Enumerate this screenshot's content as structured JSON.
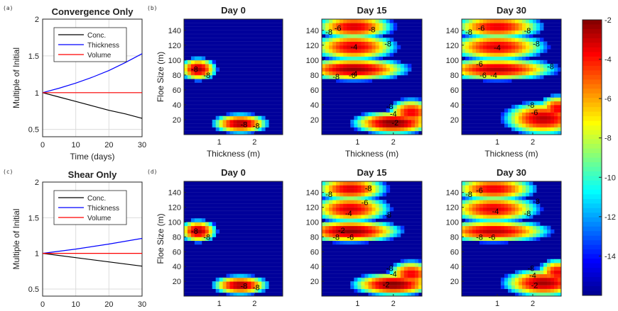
{
  "panel_labels": [
    "(a)",
    "(b)",
    "(c)",
    "(d)"
  ],
  "colormap": {
    "stops": [
      "#00008f",
      "#0000ff",
      "#0080ff",
      "#00ffff",
      "#80ff80",
      "#ffff00",
      "#ff8000",
      "#ff0000",
      "#800000"
    ],
    "background": "#00009a"
  },
  "chart_data": [
    {
      "type": "line",
      "panel": "a",
      "title": "Convergence Only",
      "xlabel": "Time (days)",
      "ylabel": "Multiple of Initial",
      "xlim": [
        0,
        30
      ],
      "ylim": [
        0.4,
        2
      ],
      "xticks": [
        "0",
        "10",
        "20",
        "30"
      ],
      "yticks": [
        "0.5",
        "1",
        "1.5",
        "2"
      ],
      "grid": true,
      "legend": "top",
      "legend_labels": [
        "Conc.",
        "Thickness",
        "Volume"
      ],
      "series": [
        {
          "name": "Conc.",
          "color": "#000000",
          "x": [
            0,
            5,
            10,
            15,
            20,
            25,
            30
          ],
          "y": [
            1.0,
            0.94,
            0.88,
            0.82,
            0.76,
            0.71,
            0.65
          ]
        },
        {
          "name": "Thickness",
          "color": "#0000ff",
          "x": [
            0,
            5,
            10,
            15,
            20,
            25,
            30
          ],
          "y": [
            1.0,
            1.06,
            1.13,
            1.21,
            1.3,
            1.41,
            1.53
          ]
        },
        {
          "name": "Volume",
          "color": "#ff0000",
          "x": [
            0,
            5,
            10,
            15,
            20,
            25,
            30
          ],
          "y": [
            1.0,
            1.0,
            1.0,
            1.0,
            1.0,
            1.0,
            1.0
          ]
        }
      ]
    },
    {
      "type": "line",
      "panel": "c",
      "title": "Shear Only",
      "xlabel": "",
      "ylabel": "Multiple of Initial",
      "xlim": [
        0,
        30
      ],
      "ylim": [
        0.4,
        2
      ],
      "xticks": [
        "0",
        "10",
        "20",
        "30"
      ],
      "yticks": [
        "0.5",
        "1",
        "1.5",
        "2"
      ],
      "grid": true,
      "legend": "top",
      "legend_labels": [
        "Conc.",
        "Thickness",
        "Volume"
      ],
      "series": [
        {
          "name": "Conc.",
          "color": "#000000",
          "x": [
            0,
            10,
            20,
            30
          ],
          "y": [
            1.0,
            0.94,
            0.88,
            0.82
          ]
        },
        {
          "name": "Thickness",
          "color": "#0000ff",
          "x": [
            0,
            10,
            20,
            30
          ],
          "y": [
            1.0,
            1.06,
            1.13,
            1.21
          ]
        },
        {
          "name": "Volume",
          "color": "#ff0000",
          "x": [
            0,
            10,
            20,
            30
          ],
          "y": [
            1.0,
            1.0,
            1.0,
            1.0
          ]
        }
      ]
    },
    {
      "type": "heatmap",
      "panel": "b",
      "title": "Day 0",
      "xlabel": "Thickness (m)",
      "ylabel": "Floe Size (m)",
      "xlim": [
        0,
        2.8
      ],
      "ylim": [
        0,
        155
      ],
      "xticks": [
        "1",
        "2"
      ],
      "yticks": [
        "20",
        "40",
        "60",
        "80",
        "100",
        "120",
        "140"
      ],
      "blobs": [
        {
          "x": 0.4,
          "y": 88,
          "sx": 0.28,
          "sy": 8,
          "peak": -2.5
        },
        {
          "x": 1.6,
          "y": 15,
          "sx": 0.42,
          "sy": 7,
          "peak": -2.5
        }
      ],
      "contour_labels": [
        {
          "text": "-8",
          "x": 0.3,
          "y": 88
        },
        {
          "text": "-8",
          "x": 0.65,
          "y": 80
        },
        {
          "text": "-8",
          "x": 1.7,
          "y": 14
        },
        {
          "text": "-8",
          "x": 2.05,
          "y": 12
        }
      ]
    },
    {
      "type": "heatmap",
      "panel": "b",
      "title": "Day 15",
      "xlabel": "Thickness (m)",
      "ylabel": "",
      "xlim": [
        0,
        2.8
      ],
      "ylim": [
        0,
        155
      ],
      "xticks": [
        "1",
        "2"
      ],
      "yticks": [
        "20",
        "40",
        "60",
        "80",
        "100",
        "120",
        "140"
      ],
      "blobs": [
        {
          "x": 0.9,
          "y": 88,
          "sx": 0.8,
          "sy": 8,
          "peak": -2.3
        },
        {
          "x": 0.9,
          "y": 118,
          "sx": 0.65,
          "sy": 10,
          "peak": -3.2
        },
        {
          "x": 0.9,
          "y": 145,
          "sx": 0.6,
          "sy": 9,
          "peak": -3.2
        },
        {
          "x": 2.0,
          "y": 16,
          "sx": 0.6,
          "sy": 8,
          "peak": -2.0
        },
        {
          "x": 2.5,
          "y": 30,
          "sx": 0.35,
          "sy": 10,
          "peak": -3.5
        }
      ],
      "contour_labels": [
        {
          "text": "-8",
          "x": 0.2,
          "y": 138
        },
        {
          "text": "-6",
          "x": 0.45,
          "y": 143
        },
        {
          "text": "-4",
          "x": 0.9,
          "y": 118
        },
        {
          "text": "-8",
          "x": 1.85,
          "y": 122
        },
        {
          "text": "-8",
          "x": 1.4,
          "y": 141
        },
        {
          "text": "-8",
          "x": 0.4,
          "y": 78
        },
        {
          "text": "-6",
          "x": 0.85,
          "y": 80
        },
        {
          "text": "-4",
          "x": 0.9,
          "y": 82
        },
        {
          "text": "-8",
          "x": 1.9,
          "y": 38
        },
        {
          "text": "-4",
          "x": 2.0,
          "y": 28
        },
        {
          "text": "-2",
          "x": 2.05,
          "y": 16
        }
      ]
    },
    {
      "type": "heatmap",
      "panel": "b",
      "title": "Day 30",
      "xlabel": "Thickness (m)",
      "ylabel": "",
      "xlim": [
        0,
        2.8
      ],
      "ylim": [
        0,
        155
      ],
      "xticks": [
        "1",
        "2"
      ],
      "yticks": [
        "20",
        "40",
        "60",
        "80",
        "100",
        "120",
        "140"
      ],
      "blobs": [
        {
          "x": 1.0,
          "y": 88,
          "sx": 0.9,
          "sy": 8,
          "peak": -2.8
        },
        {
          "x": 1.0,
          "y": 118,
          "sx": 0.75,
          "sy": 10,
          "peak": -3.3
        },
        {
          "x": 1.0,
          "y": 145,
          "sx": 0.7,
          "sy": 9,
          "peak": -3.4
        },
        {
          "x": 2.3,
          "y": 22,
          "sx": 0.6,
          "sy": 12,
          "peak": -2.8
        },
        {
          "x": 2.7,
          "y": 35,
          "sx": 0.3,
          "sy": 10,
          "peak": -3.5
        }
      ],
      "contour_labels": [
        {
          "text": "-8",
          "x": 0.2,
          "y": 138
        },
        {
          "text": "-6",
          "x": 0.55,
          "y": 143
        },
        {
          "text": "-4",
          "x": 1.0,
          "y": 117
        },
        {
          "text": "-8",
          "x": 2.1,
          "y": 122
        },
        {
          "text": "-8",
          "x": 1.85,
          "y": 140
        },
        {
          "text": "-6",
          "x": 0.5,
          "y": 95
        },
        {
          "text": "-4",
          "x": 0.9,
          "y": 80
        },
        {
          "text": "-6",
          "x": 0.6,
          "y": 80
        },
        {
          "text": "-8",
          "x": 2.5,
          "y": 92
        },
        {
          "text": "-8",
          "x": 1.95,
          "y": 40
        },
        {
          "text": "-6",
          "x": 2.05,
          "y": 30
        }
      ]
    },
    {
      "type": "heatmap",
      "panel": "d",
      "title": "Day 0",
      "xlabel": "",
      "ylabel": "Floe Size (m)",
      "xlim": [
        0,
        2.8
      ],
      "ylim": [
        0,
        155
      ],
      "xticks": [
        "1",
        "2"
      ],
      "yticks": [
        "20",
        "40",
        "60",
        "80",
        "100",
        "120",
        "140"
      ],
      "blobs": [
        {
          "x": 0.4,
          "y": 88,
          "sx": 0.28,
          "sy": 8,
          "peak": -2.5
        },
        {
          "x": 1.6,
          "y": 15,
          "sx": 0.42,
          "sy": 7,
          "peak": -2.5
        }
      ],
      "contour_labels": [
        {
          "text": "-8",
          "x": 0.3,
          "y": 88
        },
        {
          "text": "-8",
          "x": 0.65,
          "y": 80
        },
        {
          "text": "-8",
          "x": 1.7,
          "y": 14
        },
        {
          "text": "-8",
          "x": 2.05,
          "y": 12
        }
      ]
    },
    {
      "type": "heatmap",
      "panel": "d",
      "title": "Day 15",
      "xlabel": "",
      "ylabel": "",
      "xlim": [
        0,
        2.8
      ],
      "ylim": [
        0,
        155
      ],
      "xticks": [
        "1",
        "2"
      ],
      "yticks": [
        "20",
        "40",
        "60",
        "80",
        "100",
        "120",
        "140"
      ],
      "blobs": [
        {
          "x": 0.8,
          "y": 88,
          "sx": 0.75,
          "sy": 8,
          "peak": -2.2
        },
        {
          "x": 0.8,
          "y": 118,
          "sx": 0.6,
          "sy": 10,
          "peak": -3.2
        },
        {
          "x": 0.8,
          "y": 145,
          "sx": 0.55,
          "sy": 9,
          "peak": -3.2
        },
        {
          "x": 2.0,
          "y": 16,
          "sx": 0.6,
          "sy": 8,
          "peak": -2.0
        },
        {
          "x": 2.5,
          "y": 30,
          "sx": 0.35,
          "sy": 10,
          "peak": -3.5
        }
      ],
      "contour_labels": [
        {
          "text": "-8",
          "x": 0.2,
          "y": 138
        },
        {
          "text": "-8",
          "x": 1.3,
          "y": 146
        },
        {
          "text": "-6",
          "x": 1.2,
          "y": 127
        },
        {
          "text": "-4",
          "x": 0.75,
          "y": 112
        },
        {
          "text": "-8",
          "x": 1.85,
          "y": 110
        },
        {
          "text": "-2",
          "x": 0.55,
          "y": 89
        },
        {
          "text": "-8",
          "x": 0.4,
          "y": 80
        },
        {
          "text": "-6",
          "x": 0.8,
          "y": 80
        },
        {
          "text": "-8",
          "x": 1.9,
          "y": 38
        },
        {
          "text": "-4",
          "x": 2.0,
          "y": 30
        },
        {
          "text": "-2",
          "x": 1.8,
          "y": 16
        }
      ]
    },
    {
      "type": "heatmap",
      "panel": "d",
      "title": "Day 30",
      "xlabel": "",
      "ylabel": "",
      "xlim": [
        0,
        2.8
      ],
      "ylim": [
        0,
        155
      ],
      "xticks": [
        "1",
        "2"
      ],
      "yticks": [
        "20",
        "40",
        "60",
        "80",
        "100",
        "120",
        "140"
      ],
      "blobs": [
        {
          "x": 0.9,
          "y": 88,
          "sx": 0.85,
          "sy": 8,
          "peak": -2.8
        },
        {
          "x": 0.9,
          "y": 118,
          "sx": 0.7,
          "sy": 10,
          "peak": -3.3
        },
        {
          "x": 0.9,
          "y": 145,
          "sx": 0.65,
          "sy": 9,
          "peak": -3.4
        },
        {
          "x": 2.3,
          "y": 18,
          "sx": 0.6,
          "sy": 10,
          "peak": -2.5
        },
        {
          "x": 2.7,
          "y": 32,
          "sx": 0.3,
          "sy": 10,
          "peak": -3.5
        }
      ],
      "contour_labels": [
        {
          "text": "-8",
          "x": 0.2,
          "y": 138
        },
        {
          "text": "-6",
          "x": 0.5,
          "y": 143
        },
        {
          "text": "-4",
          "x": 0.95,
          "y": 115
        },
        {
          "text": "-8",
          "x": 2.1,
          "y": 128
        },
        {
          "text": "-8",
          "x": 1.85,
          "y": 112
        },
        {
          "text": "-8",
          "x": 0.5,
          "y": 80
        },
        {
          "text": "-6",
          "x": 0.85,
          "y": 80
        },
        {
          "text": "-8",
          "x": 1.95,
          "y": 38
        },
        {
          "text": "-4",
          "x": 2.0,
          "y": 28
        },
        {
          "text": "-2",
          "x": 2.05,
          "y": 15
        }
      ]
    },
    {
      "type": "colorbar",
      "clim": [
        -16,
        -2
      ],
      "ticks": [
        "-2",
        "-4",
        "-6",
        "-8",
        "-10",
        "-12",
        "-14"
      ],
      "tick_values": [
        -2,
        -4,
        -6,
        -8,
        -10,
        -12,
        -14
      ]
    }
  ]
}
